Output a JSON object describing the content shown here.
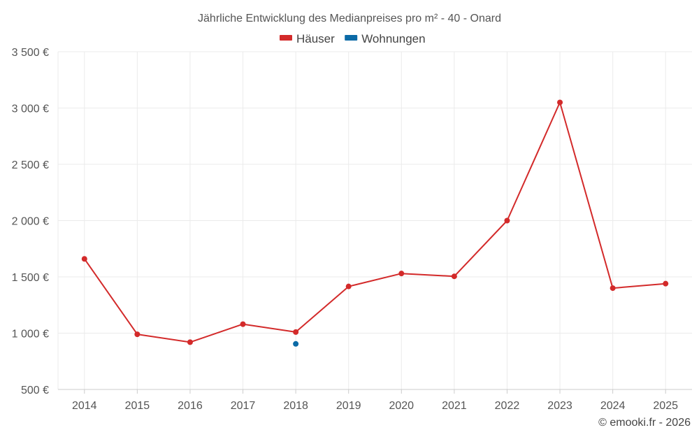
{
  "chart_data": {
    "type": "line",
    "title": "Jährliche Entwicklung des Medianpreises pro m² - 40 - Onard",
    "categories": [
      "2014",
      "2015",
      "2016",
      "2017",
      "2018",
      "2019",
      "2020",
      "2021",
      "2022",
      "2023",
      "2024",
      "2025"
    ],
    "series": [
      {
        "name": "Häuser",
        "color": "#d32a2a",
        "values": [
          1660,
          990,
          920,
          1080,
          1010,
          1415,
          1530,
          1505,
          2000,
          3050,
          1400,
          1440
        ]
      },
      {
        "name": "Wohnungen",
        "color": "#0b6aa6",
        "values": [
          null,
          null,
          null,
          null,
          905,
          null,
          null,
          null,
          null,
          null,
          null,
          null
        ]
      }
    ],
    "ylim": [
      500,
      3500
    ],
    "yticks": [
      500,
      1000,
      1500,
      2000,
      2500,
      3000,
      3500
    ],
    "ytick_labels": [
      "500 €",
      "1 000 €",
      "1 500 €",
      "2 000 €",
      "2 500 €",
      "3 000 €",
      "3 500 €"
    ],
    "grid": true,
    "legend_position": "top-center"
  },
  "credit": "© emooki.fr - 2026"
}
